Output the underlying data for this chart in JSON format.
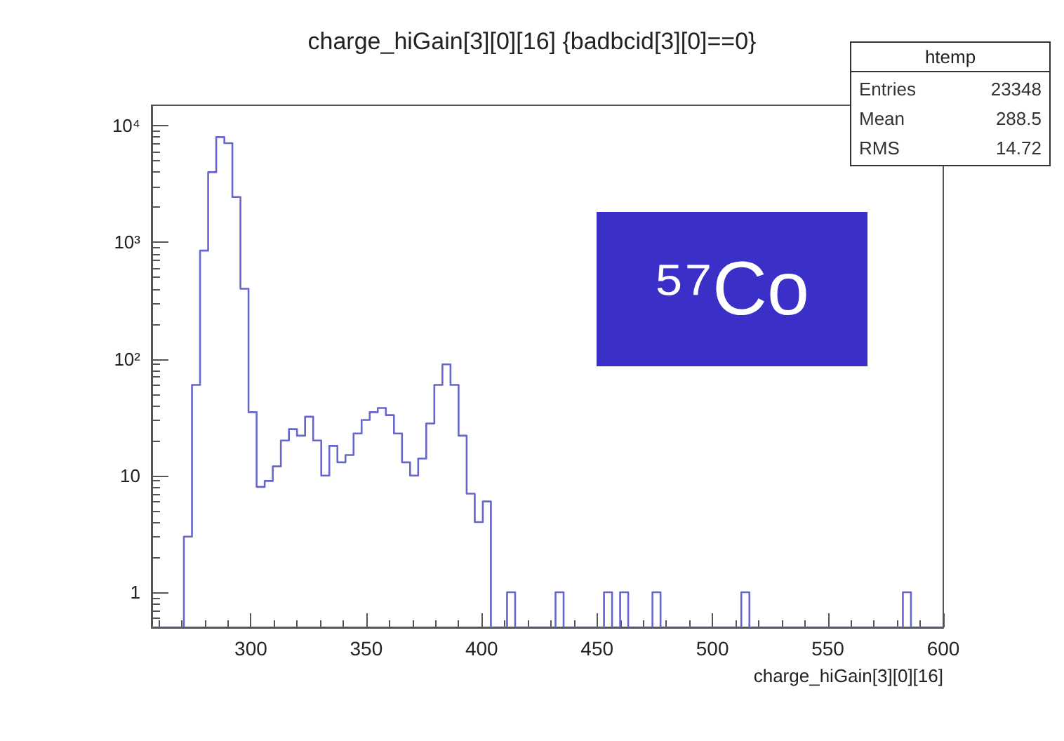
{
  "chart_data": {
    "type": "histogram",
    "title": "charge_hiGain[3][0][16] {badbcid[3][0]==0}",
    "xlabel": "charge_hiGain[3][0][16]",
    "bins": [
      257,
      260.5,
      264,
      267.5,
      271,
      274.5,
      278,
      281.5,
      285,
      288.5,
      292,
      295.5,
      299,
      302.5,
      306,
      309.5,
      313,
      316.5,
      320,
      323.5,
      327,
      330.5,
      334,
      337.5,
      341,
      344.5,
      348,
      351.5,
      355,
      358.5,
      362,
      365.5,
      369,
      372.5,
      376,
      379.5,
      383,
      386.5,
      390,
      393.5,
      397,
      400.5,
      404,
      407.5,
      411,
      414.5,
      418,
      421.5,
      425,
      428.5,
      432,
      435.5,
      439,
      442.5,
      446,
      449.5,
      453,
      456.5,
      460,
      463.5,
      467,
      470.5,
      474,
      477.5,
      481,
      484.5,
      488,
      491.5,
      495,
      498.5,
      502,
      505.5,
      509,
      512.5,
      516,
      519.5,
      523,
      526.5,
      530,
      533.5,
      537,
      540.5,
      544,
      547.5,
      551,
      554.5,
      558,
      561.5,
      565,
      568.5,
      572,
      575.5,
      579,
      582.5,
      586,
      589.5,
      593,
      596.5,
      600
    ],
    "values": [
      null,
      null,
      null,
      null,
      3,
      60,
      850,
      4000,
      8000,
      7100,
      2450,
      400,
      35,
      8,
      9,
      12,
      20,
      25,
      22,
      32,
      20,
      10,
      18,
      13,
      15,
      23,
      30,
      35,
      38,
      33,
      23,
      13,
      10,
      14,
      28,
      60,
      90,
      60,
      22,
      7,
      4,
      6,
      null,
      null,
      1,
      null,
      null,
      null,
      null,
      null,
      1,
      null,
      null,
      null,
      null,
      null,
      1,
      null,
      1,
      null,
      null,
      null,
      1,
      null,
      null,
      null,
      null,
      null,
      null,
      null,
      null,
      null,
      null,
      1,
      null,
      null,
      null,
      null,
      null,
      null,
      null,
      null,
      null,
      null,
      null,
      null,
      null,
      null,
      null,
      null,
      null,
      null,
      null,
      1,
      null,
      null,
      null,
      null
    ],
    "color": "#6666cc",
    "log": "y",
    "grid": false,
    "xlim": [
      257,
      600
    ],
    "xticks": [
      300,
      350,
      400,
      450,
      500,
      550,
      600
    ],
    "ylim": [
      0.5,
      15000
    ],
    "yticks": [
      1,
      10,
      {
        "value": 100,
        "label": "10²"
      },
      {
        "value": 1000,
        "label": "10³"
      },
      {
        "value": 10000,
        "label": "10⁴"
      }
    ],
    "annotations": [
      "htemp",
      "Entries 23348",
      "Mean 288.5",
      "RMS 14.72",
      "⁵⁷Co"
    ]
  }
}
